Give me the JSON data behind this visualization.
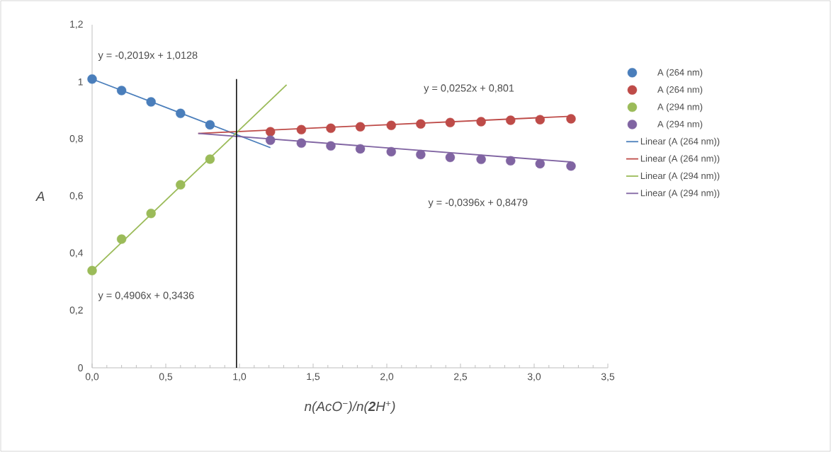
{
  "chart_data": {
    "type": "scatter",
    "xlabel": "n(AcO$^{−}$)/n(**2**H$^{+}$)",
    "ylabel": "A",
    "xlim": [
      0,
      3.5
    ],
    "ylim": [
      0,
      1.2
    ],
    "xticks": [
      {
        "value": 0,
        "label": "0,0"
      },
      {
        "value": 0.5,
        "label": "0,5"
      },
      {
        "value": 1,
        "label": "1,0"
      },
      {
        "value": 1.5,
        "label": "1,5"
      },
      {
        "value": 2,
        "label": "2,0"
      },
      {
        "value": 2.5,
        "label": "2,5"
      },
      {
        "value": 3,
        "label": "3,0"
      },
      {
        "value": 3.5,
        "label": "3,5"
      }
    ],
    "yticks": [
      0,
      {
        "value": 0.2,
        "label": "0,2"
      },
      {
        "value": 0.4,
        "label": "0,4"
      },
      {
        "value": 0.6,
        "label": "0,6"
      },
      {
        "value": 0.8,
        "label": "0,8"
      },
      1,
      {
        "value": 1.2,
        "label": "1,2"
      }
    ],
    "marker": "circle",
    "legend": "right",
    "grid": false,
    "annotations": [
      "y = -0,2019x + 1,0128",
      "y = 0,0252x + 0,801",
      "y = -0,0396x + 0,8479",
      "y = 0,4906x + 0,3436"
    ],
    "series": [
      {
        "name": "A (264 nm)",
        "color": "#4a7ebb",
        "x": [
          0,
          0.2,
          0.4,
          0.6,
          0.8
        ],
        "values": [
          1.01,
          0.97,
          0.93,
          0.89,
          0.85
        ]
      },
      {
        "name": "A (264 nm)",
        "color": "#be4b48",
        "x": [
          1.21,
          1.42,
          1.62,
          1.82,
          2.03,
          2.23,
          2.43,
          2.64,
          2.84,
          3.04,
          3.25
        ],
        "values": [
          0.826,
          0.833,
          0.838,
          0.843,
          0.848,
          0.853,
          0.858,
          0.861,
          0.866,
          0.868,
          0.871
        ]
      },
      {
        "name": "A (294 nm)",
        "color": "#9bbb59",
        "x": [
          0,
          0.2,
          0.4,
          0.6,
          0.8
        ],
        "values": [
          0.34,
          0.45,
          0.54,
          0.64,
          0.73
        ]
      },
      {
        "name": "A (294 nm)",
        "color": "#8064a2",
        "x": [
          1.21,
          1.42,
          1.62,
          1.82,
          2.03,
          2.23,
          2.43,
          2.64,
          2.84,
          3.04,
          3.25
        ],
        "values": [
          0.796,
          0.786,
          0.776,
          0.766,
          0.756,
          0.746,
          0.736,
          0.729,
          0.724,
          0.714,
          0.706
        ]
      },
      {
        "name": "Linear (A (264 nm))",
        "type": "line",
        "marker": "none",
        "color": "#4a7ebb",
        "x": [
          0,
          1.21
        ],
        "values": [
          1.01,
          0.77
        ]
      },
      {
        "name": "Linear (A (264 nm))",
        "type": "line",
        "marker": "none",
        "color": "#be4b48",
        "x": [
          0.72,
          3.25
        ],
        "values": [
          0.82,
          0.88
        ]
      },
      {
        "name": "Linear (A (294 nm))",
        "type": "line",
        "marker": "none",
        "color": "#9bbb59",
        "x": [
          0,
          1.32
        ],
        "values": [
          0.34,
          0.99
        ]
      },
      {
        "name": "Linear (A (294 nm))",
        "type": "line",
        "marker": "none",
        "color": "#8064a2",
        "x": [
          0.72,
          3.25
        ],
        "values": [
          0.82,
          0.72
        ]
      },
      {
        "type": "line",
        "marker": "none",
        "color": "#000000",
        "x": [
          0.98,
          0.98
        ],
        "values": [
          0,
          1.01
        ]
      }
    ]
  }
}
